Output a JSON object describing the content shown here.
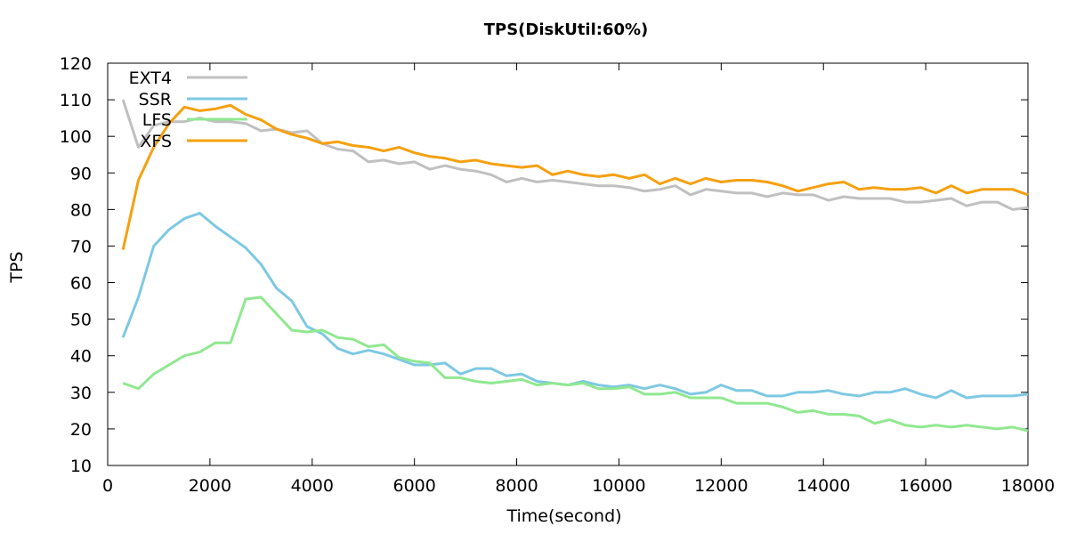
{
  "chart_data": {
    "type": "line",
    "title": "TPS(DiskUtil:60%)",
    "xlabel": "Time(second)",
    "ylabel": "TPS",
    "xlim": [
      0,
      18000
    ],
    "ylim": [
      10,
      120
    ],
    "xticks": [
      0,
      2000,
      4000,
      6000,
      8000,
      10000,
      12000,
      14000,
      16000,
      18000
    ],
    "yticks": [
      10,
      20,
      30,
      40,
      50,
      60,
      70,
      80,
      90,
      100,
      110,
      120
    ],
    "grid": false,
    "legend_position": "top-left",
    "series": [
      {
        "name": "EXT4",
        "color": "#c0c0c0",
        "points": [
          [
            300,
            110
          ],
          [
            600,
            97
          ],
          [
            900,
            103
          ],
          [
            1200,
            104
          ],
          [
            1500,
            104
          ],
          [
            1800,
            105
          ],
          [
            2100,
            104
          ],
          [
            2400,
            104
          ],
          [
            2700,
            103.5
          ],
          [
            3000,
            101.5
          ],
          [
            3300,
            102
          ],
          [
            3600,
            101
          ],
          [
            3900,
            101.5
          ],
          [
            4200,
            98
          ],
          [
            4500,
            96.5
          ],
          [
            4800,
            96
          ],
          [
            5100,
            93
          ],
          [
            5400,
            93.5
          ],
          [
            5700,
            92.5
          ],
          [
            6000,
            93
          ],
          [
            6300,
            91
          ],
          [
            6600,
            92
          ],
          [
            6900,
            91
          ],
          [
            7200,
            90.5
          ],
          [
            7500,
            89.5
          ],
          [
            7800,
            87.5
          ],
          [
            8100,
            88.5
          ],
          [
            8400,
            87.5
          ],
          [
            8700,
            88
          ],
          [
            9000,
            87.5
          ],
          [
            9300,
            87
          ],
          [
            9600,
            86.5
          ],
          [
            9900,
            86.5
          ],
          [
            10200,
            86
          ],
          [
            10500,
            85
          ],
          [
            10800,
            85.5
          ],
          [
            11100,
            86.5
          ],
          [
            11400,
            84
          ],
          [
            11700,
            85.5
          ],
          [
            12000,
            85
          ],
          [
            12300,
            84.5
          ],
          [
            12600,
            84.5
          ],
          [
            12900,
            83.5
          ],
          [
            13200,
            84.5
          ],
          [
            13500,
            84
          ],
          [
            13800,
            84
          ],
          [
            14100,
            82.5
          ],
          [
            14400,
            83.5
          ],
          [
            14700,
            83
          ],
          [
            15000,
            83
          ],
          [
            15300,
            83
          ],
          [
            15600,
            82
          ],
          [
            15900,
            82
          ],
          [
            16200,
            82.5
          ],
          [
            16500,
            83
          ],
          [
            16800,
            81
          ],
          [
            17100,
            82
          ],
          [
            17400,
            82
          ],
          [
            17700,
            80
          ],
          [
            18000,
            80.5
          ]
        ]
      },
      {
        "name": "SSR",
        "color": "#7ec8e3",
        "points": [
          [
            300,
            45
          ],
          [
            600,
            56
          ],
          [
            900,
            70
          ],
          [
            1200,
            74.5
          ],
          [
            1500,
            77.5
          ],
          [
            1800,
            79
          ],
          [
            2100,
            75.5
          ],
          [
            2400,
            72.5
          ],
          [
            2700,
            69.5
          ],
          [
            3000,
            65
          ],
          [
            3300,
            58.5
          ],
          [
            3600,
            55
          ],
          [
            3900,
            48
          ],
          [
            4200,
            46
          ],
          [
            4500,
            42
          ],
          [
            4800,
            40.5
          ],
          [
            5100,
            41.5
          ],
          [
            5400,
            40.5
          ],
          [
            5700,
            39
          ],
          [
            6000,
            37.5
          ],
          [
            6300,
            37.5
          ],
          [
            6600,
            38
          ],
          [
            6900,
            35
          ],
          [
            7200,
            36.5
          ],
          [
            7500,
            36.5
          ],
          [
            7800,
            34.5
          ],
          [
            8100,
            35
          ],
          [
            8400,
            33
          ],
          [
            8700,
            32.5
          ],
          [
            9000,
            32
          ],
          [
            9300,
            33
          ],
          [
            9600,
            32
          ],
          [
            9900,
            31.5
          ],
          [
            10200,
            32
          ],
          [
            10500,
            31
          ],
          [
            10800,
            32
          ],
          [
            11100,
            31
          ],
          [
            11400,
            29.5
          ],
          [
            11700,
            30
          ],
          [
            12000,
            32
          ],
          [
            12300,
            30.5
          ],
          [
            12600,
            30.5
          ],
          [
            12900,
            29
          ],
          [
            13200,
            29
          ],
          [
            13500,
            30
          ],
          [
            13800,
            30
          ],
          [
            14100,
            30.5
          ],
          [
            14400,
            29.5
          ],
          [
            14700,
            29
          ],
          [
            15000,
            30
          ],
          [
            15300,
            30
          ],
          [
            15600,
            31
          ],
          [
            15900,
            29.5
          ],
          [
            16200,
            28.5
          ],
          [
            16500,
            30.5
          ],
          [
            16800,
            28.5
          ],
          [
            17100,
            29
          ],
          [
            17400,
            29
          ],
          [
            17700,
            29
          ],
          [
            18000,
            29.5
          ]
        ]
      },
      {
        "name": "LFS",
        "color": "#90e890",
        "points": [
          [
            300,
            32.5
          ],
          [
            600,
            31
          ],
          [
            900,
            35
          ],
          [
            1200,
            37.5
          ],
          [
            1500,
            40
          ],
          [
            1800,
            41
          ],
          [
            2100,
            43.5
          ],
          [
            2400,
            43.5
          ],
          [
            2700,
            55.5
          ],
          [
            3000,
            56
          ],
          [
            3300,
            51.5
          ],
          [
            3600,
            47
          ],
          [
            3900,
            46.5
          ],
          [
            4200,
            47
          ],
          [
            4500,
            45
          ],
          [
            4800,
            44.5
          ],
          [
            5100,
            42.5
          ],
          [
            5400,
            43
          ],
          [
            5700,
            39.5
          ],
          [
            6000,
            38.5
          ],
          [
            6300,
            38
          ],
          [
            6600,
            34
          ],
          [
            6900,
            34
          ],
          [
            7200,
            33
          ],
          [
            7500,
            32.5
          ],
          [
            7800,
            33
          ],
          [
            8100,
            33.5
          ],
          [
            8400,
            32
          ],
          [
            8700,
            32.5
          ],
          [
            9000,
            32
          ],
          [
            9300,
            32.5
          ],
          [
            9600,
            31
          ],
          [
            9900,
            31
          ],
          [
            10200,
            31.5
          ],
          [
            10500,
            29.5
          ],
          [
            10800,
            29.5
          ],
          [
            11100,
            30
          ],
          [
            11400,
            28.5
          ],
          [
            11700,
            28.5
          ],
          [
            12000,
            28.5
          ],
          [
            12300,
            27
          ],
          [
            12600,
            27
          ],
          [
            12900,
            27
          ],
          [
            13200,
            26
          ],
          [
            13500,
            24.5
          ],
          [
            13800,
            25
          ],
          [
            14100,
            24
          ],
          [
            14400,
            24
          ],
          [
            14700,
            23.5
          ],
          [
            15000,
            21.5
          ],
          [
            15300,
            22.5
          ],
          [
            15600,
            21
          ],
          [
            15900,
            20.5
          ],
          [
            16200,
            21
          ],
          [
            16500,
            20.5
          ],
          [
            16800,
            21
          ],
          [
            17100,
            20.5
          ],
          [
            17400,
            20
          ],
          [
            17700,
            20.5
          ],
          [
            18000,
            19.5
          ]
        ]
      },
      {
        "name": "XFS",
        "color": "#f5a010",
        "points": [
          [
            300,
            69
          ],
          [
            600,
            88
          ],
          [
            900,
            97
          ],
          [
            1200,
            103.5
          ],
          [
            1500,
            108
          ],
          [
            1800,
            107
          ],
          [
            2100,
            107.5
          ],
          [
            2400,
            108.5
          ],
          [
            2700,
            106
          ],
          [
            3000,
            104.5
          ],
          [
            3300,
            102
          ],
          [
            3600,
            100.5
          ],
          [
            3900,
            99.5
          ],
          [
            4200,
            98
          ],
          [
            4500,
            98.5
          ],
          [
            4800,
            97.5
          ],
          [
            5100,
            97
          ],
          [
            5400,
            96
          ],
          [
            5700,
            97
          ],
          [
            6000,
            95.5
          ],
          [
            6300,
            94.5
          ],
          [
            6600,
            94
          ],
          [
            6900,
            93
          ],
          [
            7200,
            93.5
          ],
          [
            7500,
            92.5
          ],
          [
            7800,
            92
          ],
          [
            8100,
            91.5
          ],
          [
            8400,
            92
          ],
          [
            8700,
            89.5
          ],
          [
            9000,
            90.5
          ],
          [
            9300,
            89.5
          ],
          [
            9600,
            89
          ],
          [
            9900,
            89.5
          ],
          [
            10200,
            88.5
          ],
          [
            10500,
            89.5
          ],
          [
            10800,
            87
          ],
          [
            11100,
            88.5
          ],
          [
            11400,
            87
          ],
          [
            11700,
            88.5
          ],
          [
            12000,
            87.5
          ],
          [
            12300,
            88
          ],
          [
            12600,
            88
          ],
          [
            12900,
            87.5
          ],
          [
            13200,
            86.5
          ],
          [
            13500,
            85
          ],
          [
            13800,
            86
          ],
          [
            14100,
            87
          ],
          [
            14400,
            87.5
          ],
          [
            14700,
            85.5
          ],
          [
            15000,
            86
          ],
          [
            15300,
            85.5
          ],
          [
            15600,
            85.5
          ],
          [
            15900,
            86
          ],
          [
            16200,
            84.5
          ],
          [
            16500,
            86.5
          ],
          [
            16800,
            84.5
          ],
          [
            17100,
            85.5
          ],
          [
            17400,
            85.5
          ],
          [
            17700,
            85.5
          ],
          [
            18000,
            84
          ]
        ]
      }
    ]
  }
}
